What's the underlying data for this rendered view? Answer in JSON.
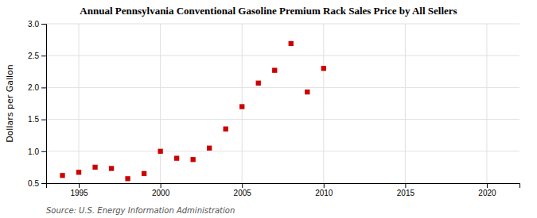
{
  "chart_data": {
    "type": "scatter",
    "title": "Annual Pennsylvania Conventional Gasoline Premium Rack Sales Price by All Sellers",
    "ylabel": "Dollars per Gallon",
    "source": "Source: U.S. Energy Information Administration",
    "x": [
      1994,
      1995,
      1996,
      1997,
      1998,
      1999,
      2000,
      2001,
      2002,
      2003,
      2004,
      2005,
      2006,
      2007,
      2008,
      2009,
      2010
    ],
    "values": [
      0.62,
      0.67,
      0.75,
      0.73,
      0.57,
      0.65,
      1.0,
      0.89,
      0.87,
      1.05,
      1.35,
      1.7,
      2.07,
      2.27,
      2.69,
      1.93,
      2.3
    ],
    "color": "#cc0000",
    "marker": "square",
    "xlim": [
      1993,
      2022
    ],
    "ylim": [
      0.5,
      3.0
    ],
    "xticks": [
      1995,
      2000,
      2005,
      2010,
      2015,
      2020
    ],
    "yticks": [
      0.5,
      {
        "value": 1.0,
        "label": "1.0"
      },
      1.5,
      {
        "value": 2.0,
        "label": "2.0"
      },
      2.5,
      {
        "value": 3.0,
        "label": "3.0"
      }
    ],
    "grid": true
  }
}
